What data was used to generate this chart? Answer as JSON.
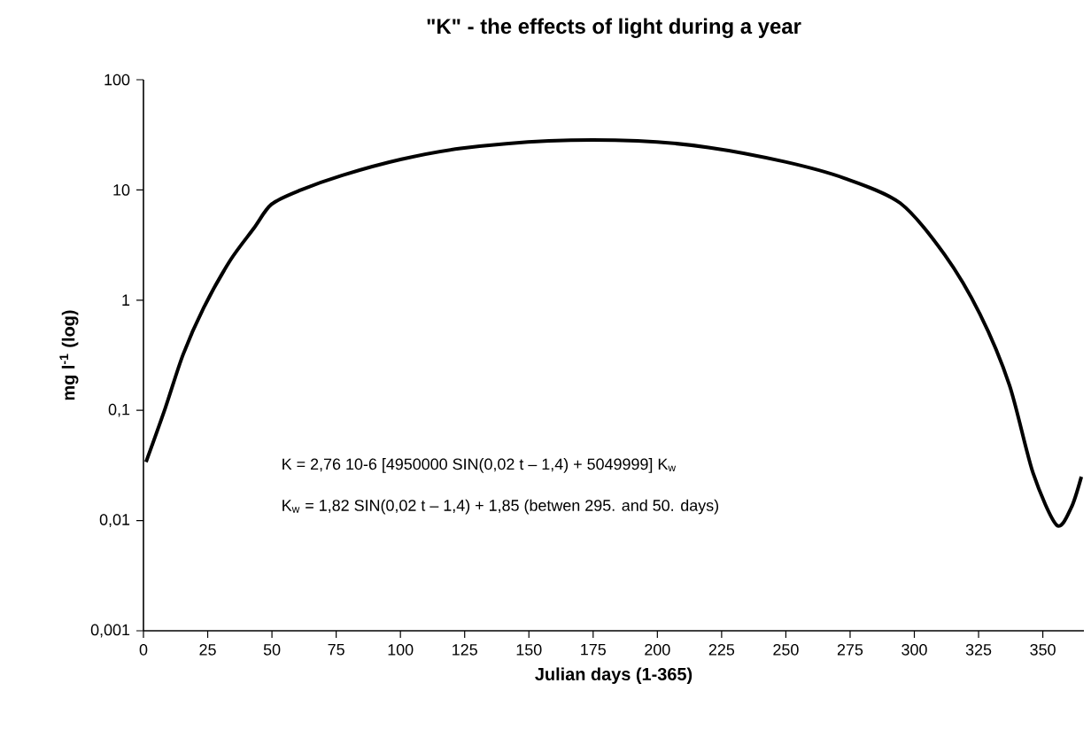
{
  "chart_data": {
    "type": "line",
    "title": "\"K\" - the effects of light during a year",
    "xlabel": "Julian days (1-365)",
    "ylabel": "mg l$^{-1}$ (log)",
    "annotations": [
      "K = 2,76 10-6 [4950000 SIN(0,02  t – 1,4) + 5049999] K$_{w}$",
      "K$_{w}$ = 1,82 SIN(0,02 t – 1,4) + 1,85 (betwen 295. and 50. days)"
    ],
    "log": "y",
    "grid": false,
    "marker": "none",
    "line_style": "solid",
    "xlim": [
      0,
      366
    ],
    "xticks": [
      0,
      25,
      50,
      75,
      100,
      125,
      150,
      175,
      200,
      225,
      250,
      275,
      300,
      325,
      350
    ],
    "ylim": [
      0.001,
      100
    ],
    "yticks": [
      {
        "value": 0.001,
        "label": "0,001"
      },
      {
        "value": 0.01,
        "label": "0,01"
      },
      {
        "value": 0.1,
        "label": "0,1"
      },
      1,
      10,
      100
    ],
    "series": [
      {
        "color": "#000000",
        "x": [
          1,
          8.5,
          15.4,
          23.4,
          33.8,
          43,
          49.8,
          61.3,
          77.4,
          100.4,
          123.4,
          157.8,
          192.3,
          219.9,
          249.7,
          272.7,
          294.5,
          311.7,
          325.5,
          337,
          346.2,
          355.4,
          361,
          365
        ],
        "values": [
          0.034,
          0.105,
          0.32,
          0.85,
          2.3,
          4.5,
          7.4,
          10,
          13.6,
          19,
          23.8,
          27.9,
          27.9,
          24.3,
          18,
          12.8,
          7.6,
          2.6,
          0.75,
          0.17,
          0.027,
          0.0091,
          0.013,
          0.025
        ]
      }
    ]
  }
}
